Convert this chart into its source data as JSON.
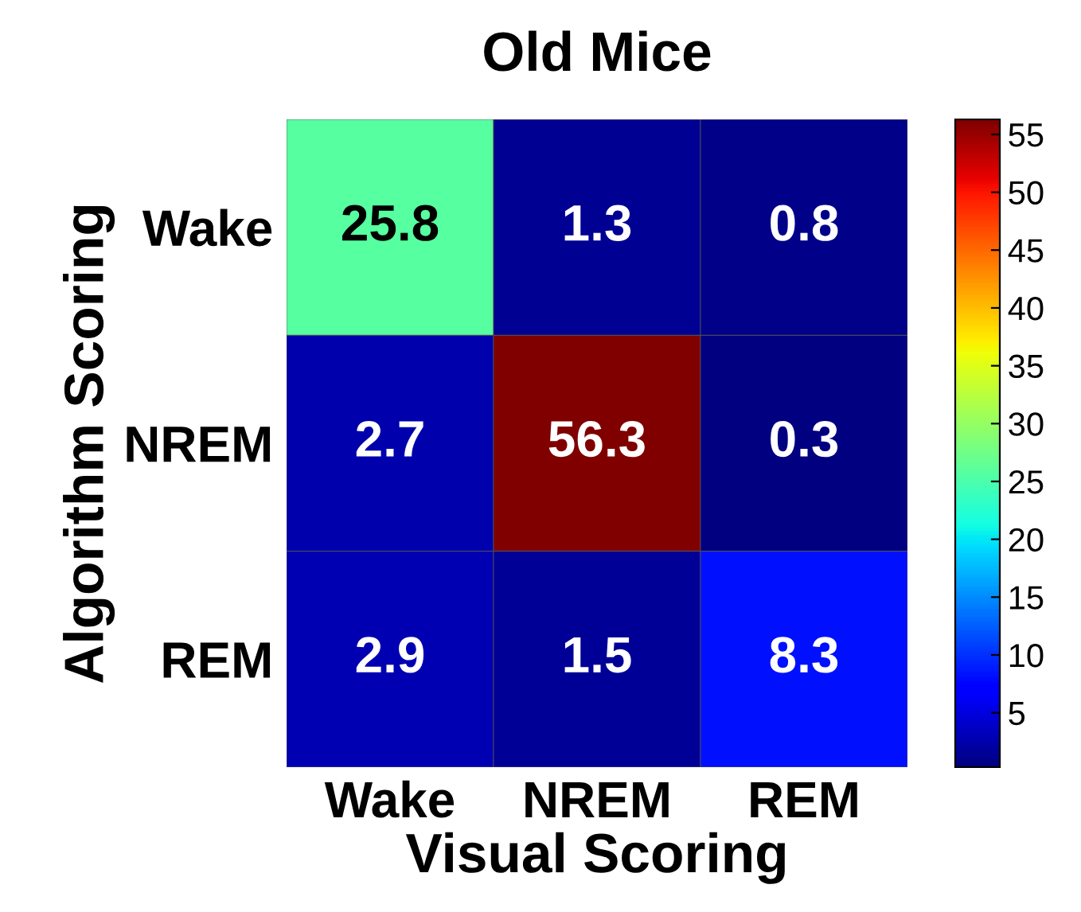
{
  "chart_data": {
    "type": "heatmap",
    "title": "Old Mice",
    "xlabel": "Visual Scoring",
    "ylabel": "Algorithm Scoring",
    "categories": [
      "Wake",
      "NREM",
      "REM"
    ],
    "y_categories": [
      "Wake",
      "NREM",
      "REM"
    ],
    "cells": [
      [
        25.8,
        1.3,
        0.8
      ],
      [
        2.7,
        56.3,
        0.3
      ],
      [
        2.9,
        1.5,
        8.3
      ]
    ],
    "data_labels": true,
    "clim": [
      0.3,
      56.3
    ],
    "cticks": [
      5,
      10,
      15,
      20,
      25,
      30,
      35,
      40,
      45,
      50,
      55
    ]
  }
}
